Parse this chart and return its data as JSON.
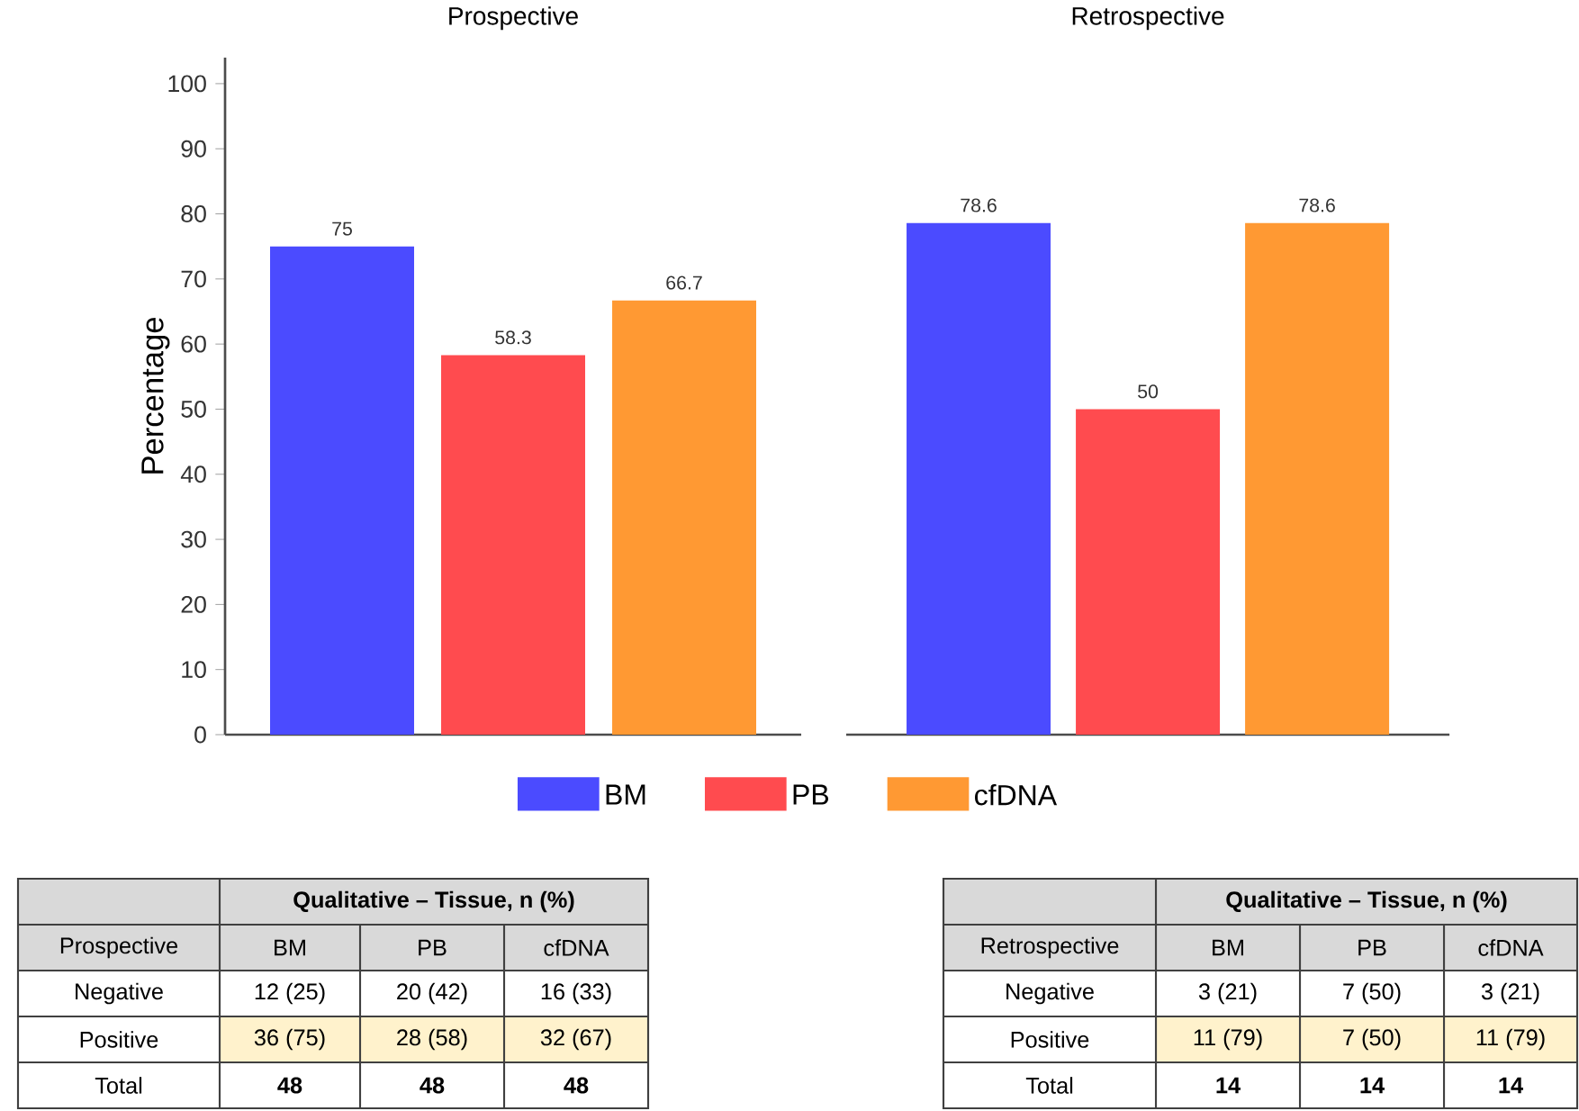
{
  "chart_data": [
    {
      "type": "bar",
      "title": "Prospective",
      "ylabel": "Percentage",
      "categories": [
        null
      ],
      "ylim": [
        0,
        104
      ],
      "yticks": [
        0,
        10,
        20,
        30,
        40,
        50,
        60,
        70,
        80,
        90,
        100
      ],
      "tick_labels": "y",
      "data_labels": true,
      "legend": "bottom",
      "series": [
        {
          "name": "BM",
          "color": "#4b4bff",
          "values": [
            75
          ]
        },
        {
          "name": "PB",
          "color": "#ff4b4f",
          "values": [
            58.3
          ]
        },
        {
          "name": "cfDNA",
          "color": "#ff9933",
          "values": [
            66.7
          ]
        }
      ]
    },
    {
      "type": "bar",
      "title": "Retrospective",
      "categories": [
        null,
        null,
        null
      ],
      "tick_labels": false,
      "data_labels": true,
      "values": [
        78.6,
        50,
        78.6
      ],
      "colors": [
        "#4b4bff",
        "#ff4b4f",
        "#ff9933"
      ]
    },
    {
      "type": "other",
      "title": "Qualitative – Tissue, n (%)",
      "ylabel": "Prospective",
      "categories": [
        "BM",
        "PB",
        "cfDNA"
      ],
      "y_categories": [
        "Negative",
        "Positive",
        "Total"
      ],
      "cell_labels": [
        [
          "12 (25)",
          "20 (42)",
          "16 (33)"
        ],
        [
          "36 (75)",
          "28 (58)",
          "32 (67)"
        ],
        [
          "48",
          "48",
          "48"
        ]
      ]
    },
    {
      "type": "other",
      "title": "Qualitative – Tissue, n (%)",
      "ylabel": "Retrospective",
      "categories": [
        "BM",
        "PB",
        "cfDNA"
      ],
      "y_categories": [
        "Negative",
        "Positive",
        "Total"
      ],
      "cell_labels": [
        [
          "3 (21)",
          "7 (50)",
          "3 (21)"
        ],
        [
          "11 (79)",
          "7 (50)",
          "11 (79)"
        ],
        [
          "14",
          "14",
          "14"
        ]
      ]
    }
  ]
}
